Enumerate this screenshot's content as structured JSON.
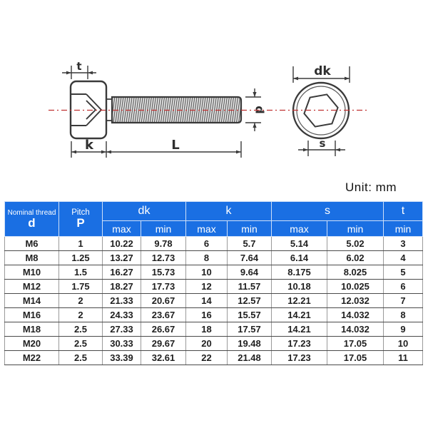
{
  "unit_label": "Unit: mm",
  "diagram": {
    "labels": {
      "t": "t",
      "k": "k",
      "L": "L",
      "d": "d",
      "dk": "dk",
      "s": "s"
    },
    "colors": {
      "line": "#3a3a3a",
      "centerline_red": "#c03232",
      "hatch_fill": "#e9e9e9"
    }
  },
  "table": {
    "colors": {
      "header_blue": "#1a6fe3",
      "header_text": "#ffffff",
      "body_text": "#1f1f1f"
    },
    "header": {
      "col1_line1": "Nominal thread",
      "col1_line2": "d",
      "col2_line1": "Pitch",
      "col2_line2": "P",
      "group_dk": "dk",
      "group_k": "k",
      "group_s": "s",
      "group_t": "t",
      "max": "max",
      "min": "min"
    },
    "rows": [
      [
        "M6",
        "1",
        "10.22",
        "9.78",
        "6",
        "5.7",
        "5.14",
        "5.02",
        "3"
      ],
      [
        "M8",
        "1.25",
        "13.27",
        "12.73",
        "8",
        "7.64",
        "6.14",
        "6.02",
        "4"
      ],
      [
        "M10",
        "1.5",
        "16.27",
        "15.73",
        "10",
        "9.64",
        "8.175",
        "8.025",
        "5"
      ],
      [
        "M12",
        "1.75",
        "18.27",
        "17.73",
        "12",
        "11.57",
        "10.18",
        "10.025",
        "6"
      ],
      [
        "M14",
        "2",
        "21.33",
        "20.67",
        "14",
        "12.57",
        "12.21",
        "12.032",
        "7"
      ],
      [
        "M16",
        "2",
        "24.33",
        "23.67",
        "16",
        "15.57",
        "14.21",
        "14.032",
        "8"
      ],
      [
        "M18",
        "2.5",
        "27.33",
        "26.67",
        "18",
        "17.57",
        "14.21",
        "14.032",
        "9"
      ],
      [
        "M20",
        "2.5",
        "30.33",
        "29.67",
        "20",
        "19.48",
        "17.23",
        "17.05",
        "10"
      ],
      [
        "M22",
        "2.5",
        "33.39",
        "32.61",
        "22",
        "21.48",
        "17.23",
        "17.05",
        "11"
      ]
    ]
  }
}
